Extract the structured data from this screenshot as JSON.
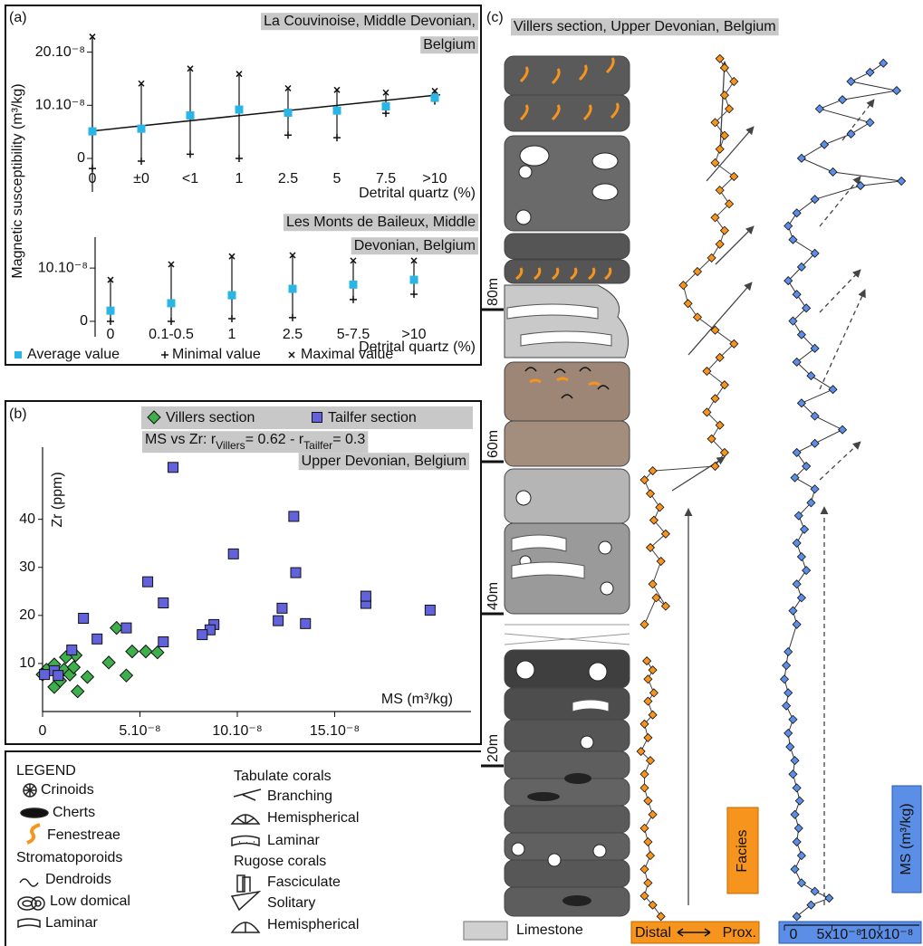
{
  "panel_labels": [
    "(a)",
    "(b)",
    "(c)"
  ],
  "chart_data": [
    {
      "type": "errorbar",
      "title": [
        "La Couvinoise, Middle Devonian,",
        "Belgium"
      ],
      "ylabel": "Magnetic susceptibility (m³/kg)",
      "xlabel": "Detrital quartz (%)",
      "categories": [
        "0",
        "±0",
        "<1",
        "1",
        "2.5",
        "5",
        "7.5",
        ">10"
      ],
      "series": [
        {
          "color": "#29b6e6",
          "values": [
            5.1e-08,
            5.6e-08,
            8.1e-08,
            9.2e-08,
            8.6e-08,
            9e-08,
            9.8e-08,
            1.14e-07
          ]
        },
        {
          "color": "#111111",
          "values": [
            -1.9e-08,
            -5e-09,
            8e-09,
            0,
            4.4e-08,
            3.9e-08,
            8.5e-08,
            1.08e-07
          ]
        },
        {
          "color": "#111111",
          "values": [
            2.29e-07,
            1.41e-07,
            1.69e-07,
            1.59e-07,
            1.32e-07,
            1.29e-07,
            1.24e-07,
            1.27e-07
          ]
        }
      ],
      "trendline": [
        5.1e-08,
        1.2e-07
      ],
      "ylim": [
        -6.3e-08,
        2.3e-07
      ],
      "yticks": [
        0,
        {
          "value": 1e-07,
          "label": "10.10⁻⁸"
        },
        {
          "value": 2e-07,
          "label": "20.10⁻⁸"
        }
      ]
    },
    {
      "type": "errorbar",
      "title": [
        "Les Monts de Baileux, Middle",
        "Devonian, Belgium"
      ],
      "xlabel": "Detrital quartz (%)",
      "categories": [
        "0",
        "0.1-0.5",
        "1",
        "2.5",
        "5-7.5",
        ">10"
      ],
      "series": [
        {
          "name": "Average value",
          "color": "#29b6e6",
          "values": [
            2e-08,
            3.4e-08,
            4.9e-08,
            6.1e-08,
            6.9e-08,
            7.8e-08
          ]
        },
        {
          "name": "Minimal value",
          "color": "#111111",
          "values": [
            0,
            0,
            5e-09,
            7e-09,
            4.1e-08,
            5.1e-08
          ]
        },
        {
          "name": "Maximal value",
          "color": "#111111",
          "values": [
            7.8e-08,
            1.07e-07,
            1.22e-07,
            1.24e-07,
            1.14e-07,
            1.14e-07
          ]
        }
      ],
      "ylim": [
        -2.9e-08,
        1.58e-07
      ],
      "yticks": [
        0,
        {
          "value": 1e-07,
          "label": "10.10⁻⁸"
        }
      ]
    },
    {
      "type": "scatter",
      "annotation": [
        "MS vs Zr: r",
        "Villers",
        "= 0.62 - r",
        "Tailfer",
        "= 0.3"
      ],
      "subtitle": "Upper Devonian, Belgium",
      "xlabel": "MS (m³/kg)",
      "ylabel": "Zr (ppm)",
      "series": [
        {
          "name": "Villers section",
          "color": "#3db04b",
          "marker": "diamond",
          "x": [
            3.8e-08,
            1.7e-08,
            1.2e-08,
            4.6e-08,
            5.3e-08,
            5.9e-08,
            3.4e-08,
            4.3e-08,
            2.3e-08,
            1.8e-08,
            6e-09,
            2e-09,
            0,
            6e-09,
            1.1e-08,
            1.4e-08,
            1.6e-08,
            9e-09
          ],
          "values": [
            17.4,
            11.7,
            11.3,
            12.5,
            12.5,
            12.3,
            10.2,
            7.5,
            7.2,
            4.2,
            5.1,
            8.7,
            7.7,
            9.8,
            8.7,
            7.7,
            9.2,
            6.4
          ]
        },
        {
          "name": "Tailfer section",
          "color": "#6262dc",
          "marker": "square",
          "x": [
            6.7e-08,
            1.29e-07,
            1.3e-07,
            9.8e-08,
            5.4e-08,
            6.2e-08,
            8.8e-08,
            8.6e-08,
            8.2e-08,
            1.23e-07,
            1.21e-07,
            1.35e-07,
            1.66e-07,
            1.66e-07,
            1.99e-07,
            6.2e-08,
            4.3e-08,
            2.8e-08,
            2.1e-08,
            1.5e-08,
            6e-09,
            1e-09,
            8e-09
          ],
          "values": [
            50.8,
            40.6,
            28.9,
            32.8,
            27.0,
            22.6,
            18.1,
            17.0,
            16.0,
            21.5,
            18.9,
            18.3,
            22.5,
            24.0,
            21.1,
            14.5,
            17.4,
            15.1,
            19.4,
            12.8,
            8.5,
            7.7,
            7.5
          ]
        }
      ],
      "xlim": [
        0,
        2.2e-07
      ],
      "ylim": [
        0,
        55
      ],
      "xticks": [
        0,
        {
          "value": 5e-08,
          "label": "5.10⁻⁸"
        },
        {
          "value": 1e-07,
          "label": "10.10⁻⁸"
        },
        {
          "value": 1.5e-07,
          "label": "15.10⁻⁸"
        }
      ],
      "yticks": [
        10,
        20,
        30,
        40
      ]
    },
    {
      "type": "profile",
      "title": "Villers section, Upper Devonian, Belgium",
      "ylim": [
        0,
        114
      ],
      "yticks": [
        {
          "value": 20,
          "label": "20m"
        },
        {
          "value": 40,
          "label": "40m"
        },
        {
          "value": 60,
          "label": "60m"
        },
        {
          "value": 80,
          "label": "80m"
        }
      ],
      "series": [
        {
          "name": "Facies",
          "color": "#f7941d",
          "axis_labels": [
            "Distal",
            "Prox."
          ],
          "xlim": [
            0,
            10
          ],
          "y": [
            0.2,
            1.7,
            2.9,
            4.6,
            6.4,
            8.2,
            10.0,
            11.8,
            13.6,
            15.4,
            17.1,
            18.9,
            20.7,
            21.9,
            23.7,
            25.5,
            26.7,
            28.5,
            29.6,
            31.4,
            32.6,
            33.8,
            null,
            38.6,
            42.1,
            41.0,
            43.9,
            46.9,
            48.7,
            50.5,
            52.3,
            54.0,
            55.8,
            57.6,
            58.8,
            59.4,
            61.2,
            63.0,
            64.8,
            66.5,
            68.3,
            70.1,
            71.9,
            73.7,
            75.5,
            77.3,
            79.0,
            80.8,
            83.2,
            85.0,
            86.8,
            88.6,
            90.4,
            92.1,
            93.9,
            95.7,
            97.5,
            99.3,
            101.1,
            102.9,
            104.6,
            106.4,
            108.2,
            110.0,
            111.8,
            113.0
          ],
          "values": [
            1.9,
            1.2,
            0.5,
            0.8,
            0.5,
            1.0,
            0.8,
            0.5,
            1.2,
            0.8,
            0.5,
            0.5,
            1.0,
            0.2,
            0.8,
            0.5,
            1.2,
            0.8,
            1.3,
            0.8,
            1.2,
            0.7,
            null,
            0.5,
            1.5,
            2.3,
            1.2,
            1.9,
            1.0,
            2.3,
            1.3,
            1.8,
            1.0,
            0.5,
            1.2,
            6.5,
            7.3,
            6.2,
            6.9,
            5.8,
            6.5,
            7.3,
            5.8,
            6.9,
            8.1,
            6.5,
            5.0,
            4.2,
            3.8,
            5.0,
            6.2,
            6.9,
            7.3,
            6.5,
            7.7,
            6.9,
            8.1,
            6.5,
            6.9,
            7.3,
            6.5,
            7.7,
            7.3,
            8.1,
            7.3,
            6.9
          ]
        },
        {
          "name": "MS (m³/kg)",
          "color": "#5b8ee6",
          "xlim": [
            0,
            1.4e-07
          ],
          "xticks": [
            0,
            {
              "value": 5e-08,
              "label": "5x10⁻⁸"
            },
            {
              "value": 1e-07,
              "label": "10x10⁻⁸"
            }
          ],
          "y": [
            0.2,
            1.7,
            2.6,
            3.5,
            4.6,
            6.4,
            8.2,
            10.0,
            11.8,
            13.6,
            15.4,
            17.1,
            18.9,
            20.7,
            22.5,
            24.3,
            26.1,
            27.9,
            29.6,
            31.4,
            33.2,
            35.0,
            38.6,
            40.4,
            42.1,
            43.9,
            45.7,
            47.5,
            49.3,
            51.1,
            52.9,
            54.6,
            56.4,
            57.9,
            59.4,
            61.2,
            62.4,
            64.2,
            66.0,
            67.7,
            69.5,
            71.3,
            73.1,
            74.9,
            76.7,
            78.5,
            80.2,
            82.0,
            83.8,
            85.6,
            87.4,
            89.2,
            91.0,
            92.7,
            94.5,
            96.3,
            96.9,
            98.1,
            99.9,
            101.7,
            103.1,
            104.6,
            106.4,
            107.6,
            108.8,
            110.0,
            111.2,
            112.4
          ],
          "values": [
            1.3e-08,
            2.8e-08,
            4.7e-08,
            3.2e-08,
            1.8e-08,
            1.1e-08,
            1.8e-08,
            1.3e-08,
            1.5e-08,
            1.1e-08,
            1.6e-08,
            1.3e-08,
            9e-09,
            1.1e-08,
            6e-09,
            4e-09,
            9e-09,
            2e-09,
            4e-09,
            0,
            2e-09,
            4e-09,
            1.3e-08,
            9e-09,
            1.8e-08,
            1.3e-08,
            2.3e-08,
            1.8e-08,
            1.3e-08,
            2.1e-08,
            1.5e-08,
            2.8e-08,
            3.2e-08,
            1.1e-08,
            2.3e-08,
            1.3e-08,
            3.2e-08,
            6.1e-08,
            3.2e-08,
            1.8e-08,
            5.1e-08,
            2.8e-08,
            1.3e-08,
            3.2e-08,
            1.8e-08,
            9e-09,
            2.3e-08,
            1.3e-08,
            4e-09,
            1.8e-08,
            3.2e-08,
            9e-09,
            4e-09,
            1.3e-08,
            3.2e-08,
            8e-08,
            1.23e-07,
            5.1e-08,
            1.8e-08,
            4.2e-08,
            7e-08,
            9e-08,
            3.7e-08,
            6.1e-08,
            1.18e-07,
            7e-08,
            9e-08,
            1.04e-07
          ]
        }
      ]
    }
  ],
  "lithology_legend": {
    "title": "LEGEND",
    "entries": [
      "Crinoids",
      "Cherts",
      "Fenestreae",
      "Stromatoporoids",
      "Dendroids",
      "Low domical",
      "Laminar",
      "Tabulate corals",
      "Branching",
      "Hemispherical",
      "Laminar",
      "Rugose corals",
      "Fasciculate",
      "Solitary",
      "Hemispherical",
      "Limestone"
    ]
  }
}
